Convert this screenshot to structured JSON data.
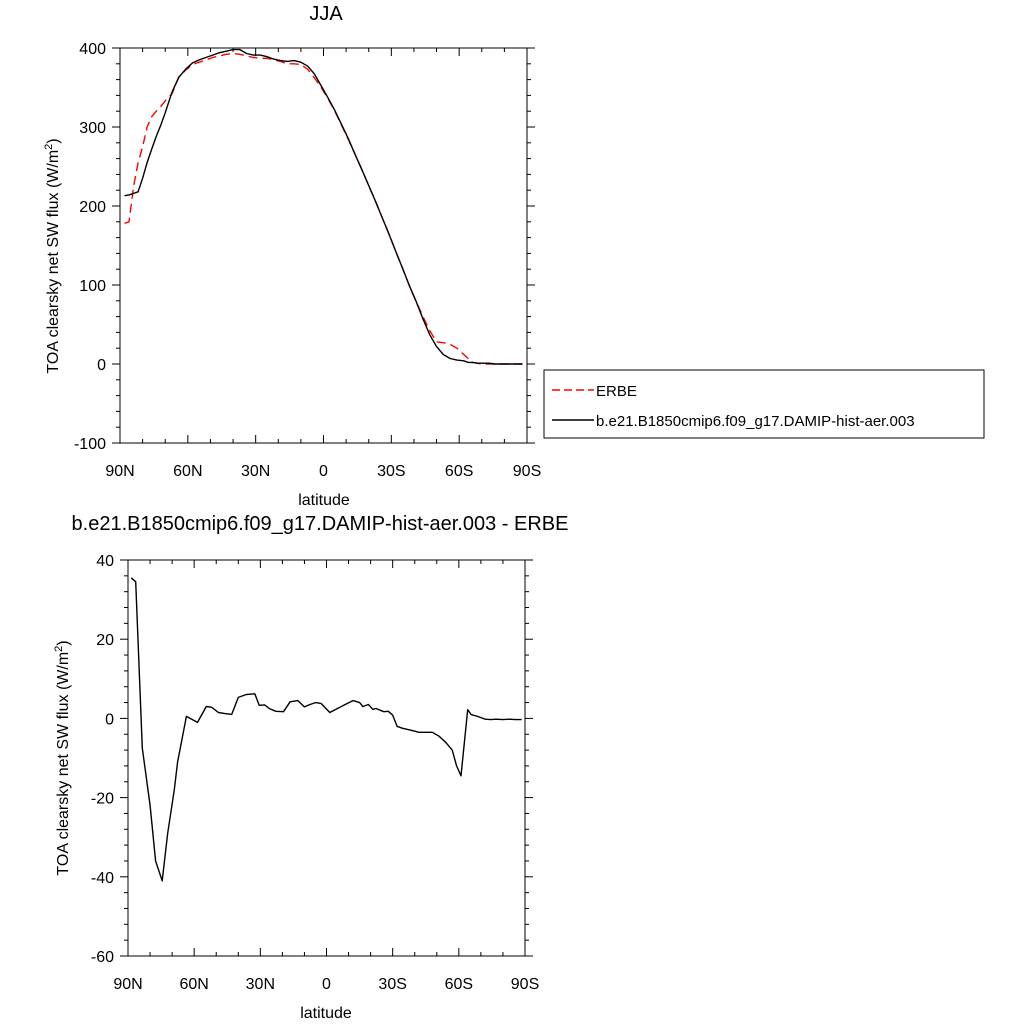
{
  "chart_data": [
    {
      "type": "line",
      "title": "JJA",
      "xlabel": "latitude",
      "ylabel_main": "TOA clearsky net SW flux (W/m",
      "ylabel_sup": "2",
      "ylabel_tail": ")",
      "xlim": [
        90,
        -90
      ],
      "ylim": [
        -100,
        400
      ],
      "xticks": [
        90,
        60,
        30,
        0,
        -30,
        -60,
        -90
      ],
      "xtick_labels": [
        "90N",
        "60N",
        "30N",
        "0",
        "30S",
        "60S",
        "90S"
      ],
      "yticks": [
        -100,
        0,
        100,
        200,
        300,
        400
      ],
      "ytick_labels": [
        "-100",
        "0",
        "100",
        "200",
        "300",
        "400"
      ],
      "legend_position": "right",
      "series": [
        {
          "name": "ERBE",
          "color": "#ff0000",
          "dash": "dashed",
          "x": [
            88,
            86,
            84,
            82,
            80,
            78,
            76,
            74,
            72,
            70,
            67,
            64,
            61,
            58,
            55,
            52,
            49,
            46,
            43,
            40,
            37,
            34,
            31,
            28,
            25,
            22,
            19,
            16,
            13,
            10,
            7,
            4,
            1,
            -2,
            -5,
            -8,
            -11,
            -14,
            -17,
            -20,
            -23,
            -26,
            -29,
            -32,
            -35,
            -38,
            -41,
            -44,
            -47,
            -50,
            -53,
            -56,
            -59,
            -62,
            -64,
            -65,
            -66,
            -68,
            -70,
            -73,
            -76,
            -79,
            -82,
            -85,
            -88
          ],
          "y": [
            178,
            180,
            225,
            255,
            275,
            300,
            313,
            320,
            326,
            333,
            342,
            363,
            372,
            379,
            382,
            385,
            388,
            390,
            392,
            393,
            392,
            390,
            388,
            387,
            387,
            385,
            383,
            380,
            380,
            379,
            373,
            362,
            350,
            336,
            320,
            302,
            284,
            265,
            246,
            226,
            206,
            185,
            164,
            142,
            121,
            99,
            79,
            60,
            42,
            28,
            27,
            25,
            20,
            12,
            7,
            3,
            2,
            1,
            0,
            0,
            0,
            0,
            0,
            0,
            0
          ]
        },
        {
          "name": "b.e21.B1850cmip6.f09_g17.DAMIP-hist-aer.003",
          "color": "#000000",
          "dash": "solid",
          "x": [
            88,
            86,
            84,
            82,
            80,
            78,
            76,
            74,
            72,
            70,
            67,
            64,
            61,
            58,
            55,
            52,
            49,
            46,
            43,
            40,
            37,
            34,
            31,
            28,
            25,
            22,
            19,
            16,
            13,
            10,
            7,
            4,
            1,
            -2,
            -5,
            -8,
            -11,
            -14,
            -17,
            -20,
            -23,
            -26,
            -29,
            -32,
            -35,
            -38,
            -41,
            -44,
            -47,
            -50,
            -53,
            -56,
            -59,
            -62,
            -64,
            -65,
            -66,
            -68,
            -70,
            -73,
            -76,
            -79,
            -82,
            -85,
            -88
          ],
          "y": [
            213,
            214,
            216,
            218,
            235,
            255,
            272,
            288,
            302,
            318,
            344,
            363,
            373,
            381,
            385,
            388,
            391,
            394,
            396,
            398,
            398,
            393,
            391,
            391,
            389,
            386,
            384,
            383,
            384,
            382,
            377,
            367,
            352,
            337,
            321,
            303,
            285,
            265,
            246,
            226,
            206,
            185,
            164,
            142,
            121,
            99,
            79,
            57,
            37,
            22,
            12,
            7,
            5,
            4,
            2,
            2,
            2,
            1,
            1,
            1,
            0,
            0,
            0,
            0,
            0
          ]
        }
      ]
    },
    {
      "type": "line",
      "title": "b.e21.B1850cmip6.f09_g17.DAMIP-hist-aer.003 - ERBE",
      "xlabel": "latitude",
      "ylabel_main": "TOA clearsky net SW flux (W/m",
      "ylabel_sup": "2",
      "ylabel_tail": ")",
      "xlim": [
        90,
        -90
      ],
      "ylim": [
        -60,
        40
      ],
      "xticks": [
        90,
        60,
        30,
        0,
        -30,
        -60,
        -90
      ],
      "xtick_labels": [
        "90N",
        "60N",
        "30N",
        "0",
        "30S",
        "60S",
        "90S"
      ],
      "yticks": [
        -60,
        -40,
        -20,
        0,
        20,
        40
      ],
      "ytick_labels": [
        "-60",
        "-40",
        "-20",
        "0",
        "20",
        "40"
      ],
      "series": [
        {
          "color": "#000000",
          "dash": "solid",
          "x": [
            88.5,
            86.5,
            83.5,
            80,
            77.5,
            74.5,
            72,
            69,
            67.5,
            63.5,
            58.5,
            54.5,
            52,
            49,
            46,
            43,
            40,
            36.5,
            32.5,
            30.5,
            28,
            26,
            23,
            19.5,
            16.5,
            13,
            10,
            7.5,
            5,
            2.5,
            -1.5,
            -5,
            -8.5,
            -12,
            -15,
            -16.5,
            -19,
            -21,
            -22.5,
            -26,
            -28,
            -30,
            -32,
            -34.5,
            -38.5,
            -42,
            -45,
            -48,
            -51,
            -54,
            -57,
            -59,
            -61,
            -64,
            -65.5,
            -66.5,
            -68,
            -70,
            -72,
            -74.5,
            -77,
            -80,
            -83,
            -85.5,
            -88.5
          ],
          "y": [
            35.5,
            34.5,
            -7.5,
            -22,
            -36,
            -41,
            -29,
            -18,
            -11,
            0.5,
            -1,
            3,
            2.8,
            1.5,
            1.2,
            1,
            5.3,
            6,
            6.2,
            3.3,
            3.4,
            2.5,
            1.8,
            1.7,
            4.2,
            4.5,
            2.9,
            3.5,
            4,
            3.8,
            1.5,
            2.5,
            3.5,
            4.5,
            4,
            3,
            3.5,
            2.3,
            2.5,
            1.7,
            1.8,
            0.8,
            -2,
            -2.5,
            -3,
            -3.5,
            -3.5,
            -3.5,
            -4.5,
            -6,
            -8,
            -12,
            -14.5,
            2.2,
            1,
            0.8,
            0.6,
            0.2,
            -0.2,
            -0.3,
            -0.2,
            -0.3,
            -0.2,
            -0.3,
            -0.3
          ]
        }
      ]
    }
  ]
}
